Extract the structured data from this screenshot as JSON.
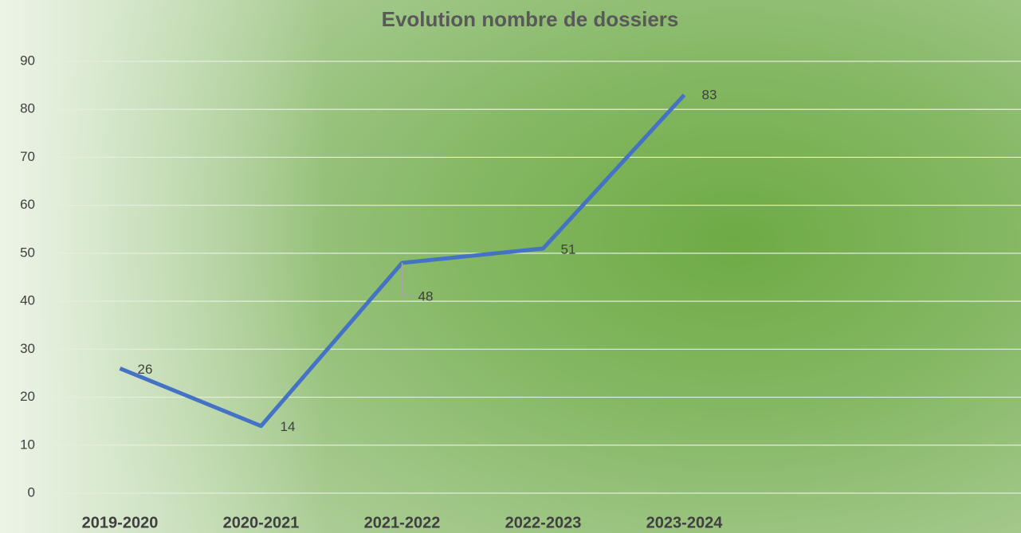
{
  "chart_data": {
    "type": "line",
    "title": "Evolution nombre de dossiers",
    "categories": [
      "2019-2020",
      "2020-2021",
      "2021-2022",
      "2022-2023",
      "2023-2024",
      null,
      null
    ],
    "values": [
      26,
      14,
      48,
      51,
      83,
      null,
      null
    ],
    "color": "#4472c4",
    "ylim": [
      0,
      90
    ],
    "yticks": [
      0,
      10,
      20,
      30,
      40,
      50,
      60,
      70,
      80,
      90
    ],
    "grid": true
  }
}
